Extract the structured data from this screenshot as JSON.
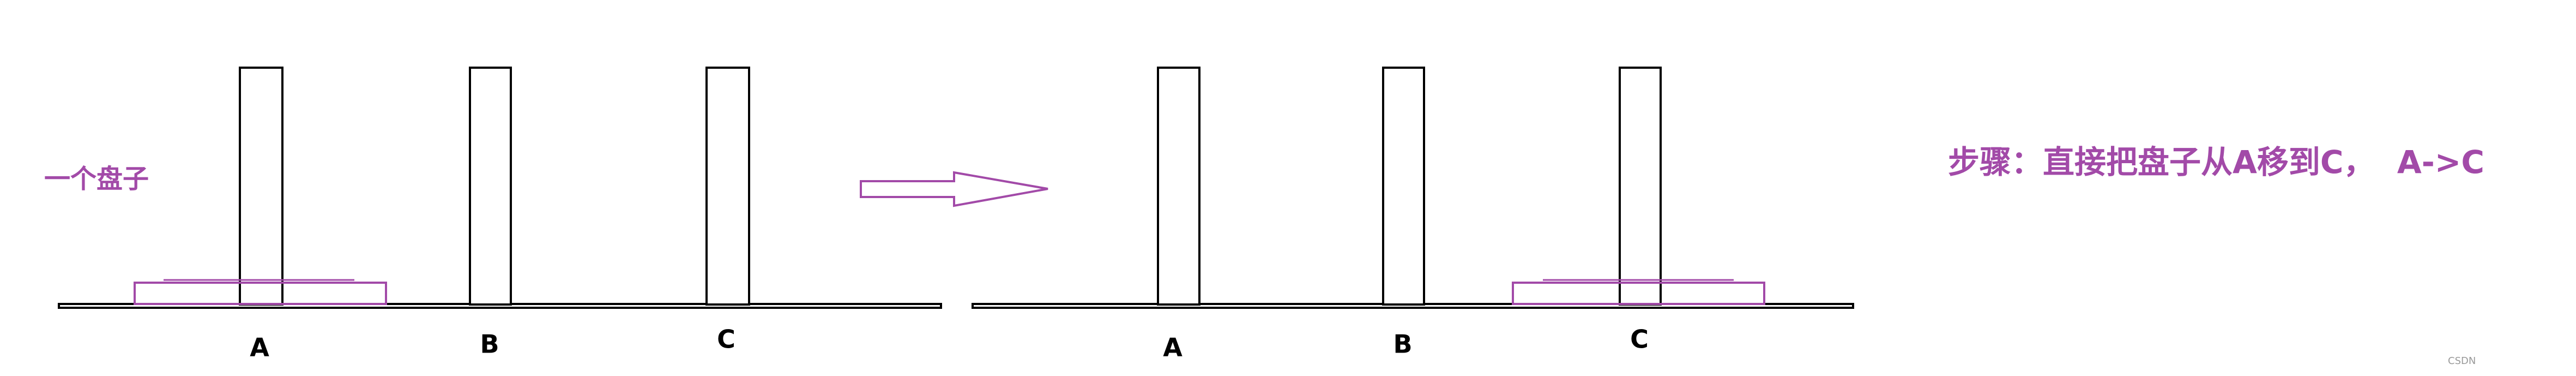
{
  "left": {
    "caption": "一个盘子",
    "pegs": [
      "A",
      "B",
      "C"
    ]
  },
  "right": {
    "pegs": [
      "A",
      "B",
      "C"
    ]
  },
  "step": "步骤：直接把盘子从A移到C，  A->C",
  "watermark": "CSDN"
}
